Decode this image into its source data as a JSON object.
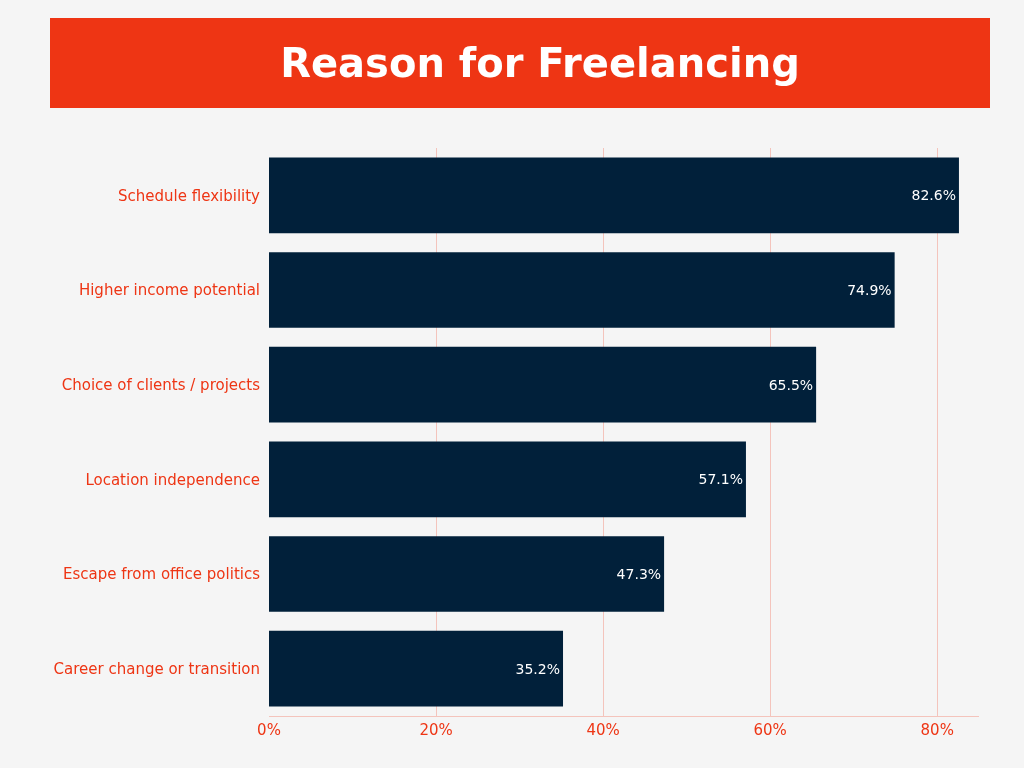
{
  "chart_data": {
    "type": "bar",
    "orientation": "horizontal",
    "title": "Reason for Freelancing",
    "categories": [
      "Schedule flexibility",
      "Higher income potential",
      "Choice of clients / projects",
      "Location independence",
      "Escape from office politics",
      "Career change or transition"
    ],
    "values": [
      82.6,
      74.9,
      65.5,
      57.1,
      47.3,
      35.2
    ],
    "value_labels": [
      "82.6%",
      "74.9%",
      "65.5%",
      "57.1%",
      "47.3%",
      "35.2%"
    ],
    "color": "#01203a",
    "xlim": [
      0,
      85
    ],
    "xticks": [
      {
        "value": 0,
        "label": "0%"
      },
      {
        "value": 20,
        "label": "20%"
      },
      {
        "value": 40,
        "label": "40%"
      },
      {
        "value": 60,
        "label": "60%"
      },
      {
        "value": 80,
        "label": "80%"
      }
    ],
    "grid": "x",
    "legend": false
  }
}
